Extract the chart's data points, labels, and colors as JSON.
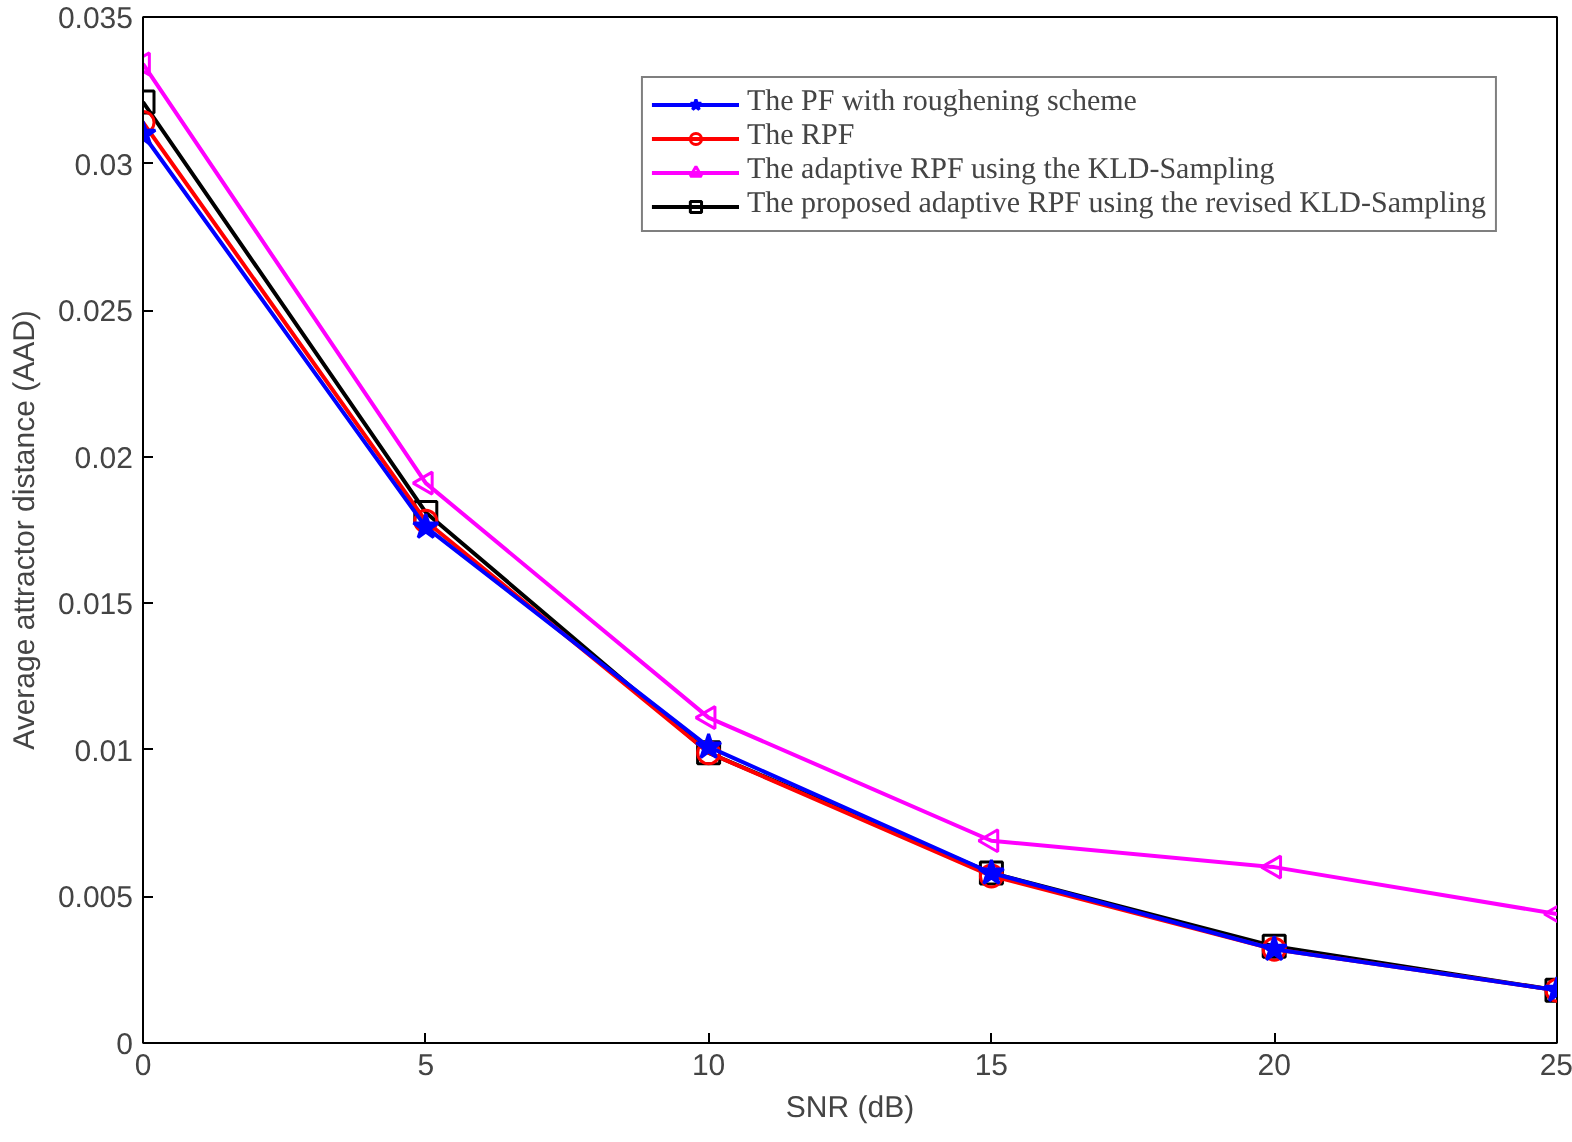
{
  "chart_data": {
    "type": "line",
    "xlabel": "SNR (dB)",
    "ylabel": "Average attractor distance (AAD)",
    "x": [
      0,
      5,
      10,
      15,
      20,
      25
    ],
    "xlim": [
      0,
      25
    ],
    "xticks": [
      0,
      5,
      10,
      15,
      20,
      25
    ],
    "ylim": [
      0,
      0.035
    ],
    "yticks": [
      0,
      0.005,
      0.01,
      0.015,
      0.02,
      0.025,
      0.03,
      0.035
    ],
    "grid": false,
    "legend": "top right",
    "line_style": "solid",
    "series": [
      {
        "name": "The PF with roughening scheme",
        "color": "#0000ff",
        "marker": "star",
        "values": [
          0.031,
          0.0176,
          0.0101,
          0.0058,
          0.0032,
          0.0018
        ]
      },
      {
        "name": "The RPF",
        "color": "#ff0000",
        "marker": "circle",
        "values": [
          0.0314,
          0.0178,
          0.0099,
          0.0057,
          0.0032,
          0.0018
        ]
      },
      {
        "name": "The adaptive RPF using the KLD-Sampling",
        "color": "#ff00ff",
        "marker": "triangle",
        "values": [
          0.0334,
          0.0191,
          0.0111,
          0.0069,
          0.006,
          0.0044
        ]
      },
      {
        "name": "The proposed adaptive RPF using the revised KLD-Sampling",
        "color": "#000000",
        "marker": "square",
        "values": [
          0.0321,
          0.0181,
          0.0099,
          0.0058,
          0.0033,
          0.0018
        ]
      }
    ]
  }
}
